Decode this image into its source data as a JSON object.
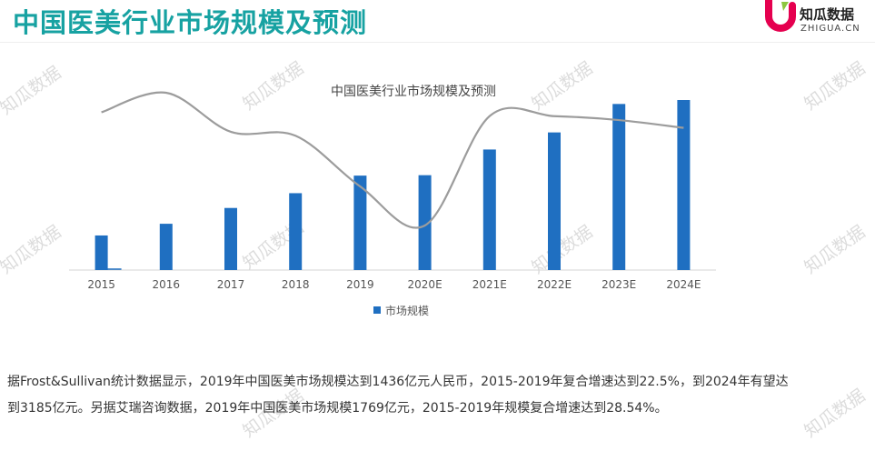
{
  "header": {
    "title": "中国医美行业市场规模及预测",
    "logo_text": "知瓜数据",
    "logo_subtext": "ZHIGUA.CN"
  },
  "watermark_text": "知瓜数据",
  "colors": {
    "title": "#17a2a2",
    "bar": "#1f6fc1",
    "growth_line": "#9c9c9c",
    "logo_red": "#e5004f",
    "logo_green": "#8cc63f"
  },
  "chart_data": {
    "type": "bar",
    "title": "中国医美行业市场规模及预测",
    "categories": [
      "2015",
      "2016",
      "2017",
      "2018",
      "2019",
      "2020E",
      "2021E",
      "2022E",
      "2023E",
      "2024E"
    ],
    "series": [
      {
        "name": "市场规模",
        "values": [
          648,
          867,
          1163,
          1440,
          1769,
          1777,
          2258,
          2578,
          3111,
          3185
        ]
      }
    ],
    "secondary_line": {
      "type": "line",
      "smooth": true,
      "values": [
        29,
        34,
        24,
        23,
        10,
        0,
        28,
        28,
        27,
        25
      ]
    },
    "legend": "bottom-center",
    "grid": false
  },
  "caption": {
    "line1": "据Frost&Sullivan统计数据显示，2019年中国医美市场规模达到1436亿元人民币，2015-2019年复合增速达到22.5%，到2024年有望达",
    "line2": "到3185亿元。另据艾瑞咨询数据，2019年中国医美市场规模1769亿元，2015-2019年规模复合增速达到28.54%。"
  }
}
